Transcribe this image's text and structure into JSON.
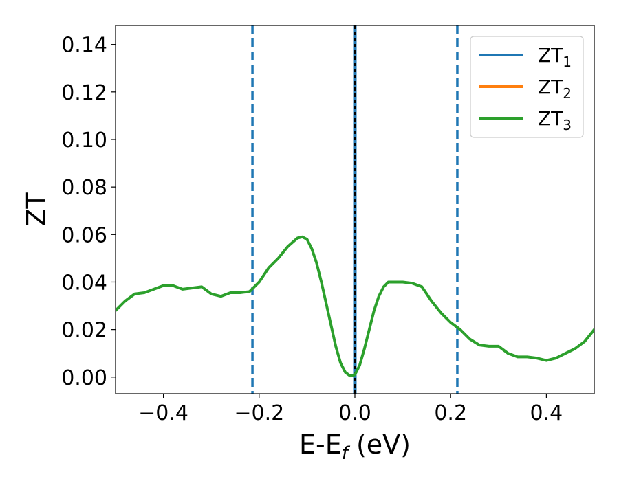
{
  "chart_data": {
    "type": "line",
    "xlabel": "E-E",
    "xlabel_sub": "f",
    "xlabel_unit": " (eV)",
    "ylabel": "ZT",
    "xlim": [
      -0.5,
      0.5
    ],
    "ylim": [
      -0.007,
      0.148
    ],
    "xticks": [
      -0.4,
      -0.2,
      0.0,
      0.2,
      0.4
    ],
    "xtick_labels": [
      "−0.4",
      "−0.2",
      "0.0",
      "0.2",
      "0.4"
    ],
    "yticks": [
      0.0,
      0.02,
      0.04,
      0.06,
      0.08,
      0.1,
      0.12,
      0.14
    ],
    "ytick_labels": [
      "0.00",
      "0.02",
      "0.04",
      "0.06",
      "0.08",
      "0.10",
      "0.12",
      "0.14"
    ],
    "grid": false,
    "legend_position": "top-right",
    "colors": {
      "zt1": "#1f77b4",
      "zt2": "#ff7f0e",
      "zt3": "#2ca02c",
      "fermi": "#000000"
    },
    "vlines": [
      {
        "x": -0.214,
        "style": "dashed",
        "color": "#1f77b4"
      },
      {
        "x": 0.0,
        "style": "solid",
        "color": "#1f77b4"
      },
      {
        "x": 0.0,
        "style": "dotted",
        "color": "#000000"
      },
      {
        "x": 0.214,
        "style": "dashed",
        "color": "#1f77b4"
      }
    ],
    "series": [
      {
        "name": "ZT",
        "sub": "1",
        "color": "#1f77b4",
        "x": [],
        "y": []
      },
      {
        "name": "ZT",
        "sub": "2",
        "color": "#ff7f0e",
        "x": [],
        "y": []
      },
      {
        "name": "ZT",
        "sub": "3",
        "color": "#2ca02c",
        "x": [
          -0.5,
          -0.48,
          -0.46,
          -0.44,
          -0.42,
          -0.4,
          -0.38,
          -0.36,
          -0.34,
          -0.32,
          -0.3,
          -0.28,
          -0.26,
          -0.24,
          -0.22,
          -0.2,
          -0.18,
          -0.16,
          -0.14,
          -0.12,
          -0.11,
          -0.1,
          -0.09,
          -0.08,
          -0.07,
          -0.06,
          -0.05,
          -0.04,
          -0.03,
          -0.02,
          -0.01,
          0.0,
          0.01,
          0.02,
          0.03,
          0.04,
          0.05,
          0.06,
          0.07,
          0.08,
          0.09,
          0.1,
          0.12,
          0.14,
          0.16,
          0.18,
          0.2,
          0.22,
          0.24,
          0.26,
          0.28,
          0.3,
          0.32,
          0.34,
          0.36,
          0.38,
          0.4,
          0.42,
          0.44,
          0.46,
          0.48,
          0.5
        ],
        "y": [
          0.028,
          0.032,
          0.035,
          0.0355,
          0.037,
          0.0385,
          0.0385,
          0.037,
          0.0375,
          0.038,
          0.035,
          0.034,
          0.0355,
          0.0355,
          0.036,
          0.04,
          0.046,
          0.05,
          0.055,
          0.0585,
          0.059,
          0.058,
          0.054,
          0.048,
          0.04,
          0.031,
          0.022,
          0.013,
          0.006,
          0.002,
          0.0005,
          0.001,
          0.005,
          0.012,
          0.02,
          0.028,
          0.034,
          0.038,
          0.04,
          0.04,
          0.04,
          0.04,
          0.0395,
          0.038,
          0.032,
          0.027,
          0.023,
          0.02,
          0.016,
          0.0135,
          0.013,
          0.013,
          0.01,
          0.0085,
          0.0085,
          0.008,
          0.007,
          0.008,
          0.01,
          0.012,
          0.015,
          0.02
        ]
      }
    ]
  }
}
